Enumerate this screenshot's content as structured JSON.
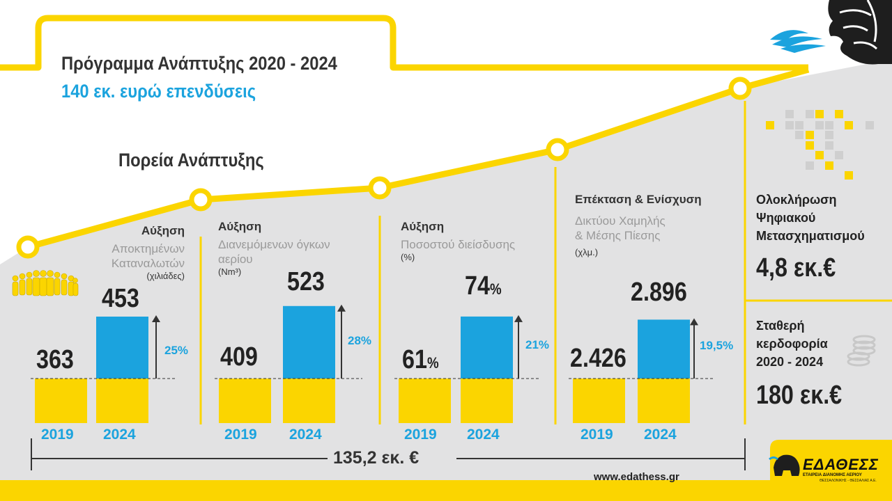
{
  "title": "Πρόγραμμα Ανάπτυξης 2020 - 2024",
  "subtitle": "140 εκ. ευρώ επενδύσεις",
  "section_title": "Πορεία Ανάπτυξης",
  "colors": {
    "blue": "#1ba3de",
    "yellow": "#fbd500",
    "grey_bg": "#e2e2e3",
    "dark": "#222222"
  },
  "metrics": [
    {
      "header": "Αύξηση",
      "desc_lines": [
        "Αποκτημένων",
        "Καταναλωτών"
      ],
      "unit": "(χιλιάδες)",
      "value_2019": "363",
      "value_2024": "453",
      "growth": "25%",
      "icon": "people-icon"
    },
    {
      "header": "Αύξηση",
      "desc_lines": [
        "Διανεμόμενων όγκων",
        "αερίου"
      ],
      "unit": "(Nm³)",
      "value_2019": "409",
      "value_2024": "523",
      "growth": "28%"
    },
    {
      "header": "Αύξηση",
      "desc_lines": [
        "Ποσοστού διείσδυσης"
      ],
      "unit": "(%)",
      "value_2019": "61",
      "value_2019_suffix": "%",
      "value_2024": "74",
      "value_2024_suffix": "%",
      "growth": "21%"
    },
    {
      "header": "Επέκταση & Ενίσχυση",
      "desc_lines": [
        "Δικτύου Χαμηλής",
        "& Μέσης Πίεσης"
      ],
      "unit": "(χλμ.)",
      "value_2019": "2.426",
      "value_2024": "2.896",
      "growth": "19,5%"
    }
  ],
  "years": [
    "2019",
    "2024"
  ],
  "total": "135,2 εκ. €",
  "digital": {
    "lines": [
      "Ολοκλήρωση",
      "Ψηφιακού",
      "Μετασχηματισμού"
    ],
    "value": "4,8 εκ.€"
  },
  "dividend": {
    "lines": [
      "Σταθερή",
      "κερδοφορία",
      "2020 - 2024"
    ],
    "value": "180 εκ.€"
  },
  "website": "www.edathess.gr",
  "logo": {
    "name": "ΕΔΑΘΕΣΣ",
    "tagline": "ΕΤΑΙΡΕΙΑ ΔΙΑΝΟΜΗΣ ΑΕΡΙΟΥ",
    "tagline2": "ΘΕΣΣΑΛΟΝΙΚΗΣ - ΘΕΣΣΑΛΙΑΣ Α.Ε."
  },
  "chart_data": [
    {
      "type": "bar",
      "categories": [
        "2019",
        "2024"
      ],
      "values": [
        363,
        453
      ],
      "growth": "25%"
    },
    {
      "type": "bar",
      "categories": [
        "2019",
        "2024"
      ],
      "values": [
        409,
        523
      ],
      "growth": "28%"
    },
    {
      "type": "bar",
      "categories": [
        "2019",
        "2024"
      ],
      "values": [
        61,
        74
      ],
      "growth": "21%"
    },
    {
      "type": "bar",
      "categories": [
        "2019",
        "2024"
      ],
      "values": [
        2426,
        2896
      ],
      "growth": "19,5%"
    }
  ]
}
